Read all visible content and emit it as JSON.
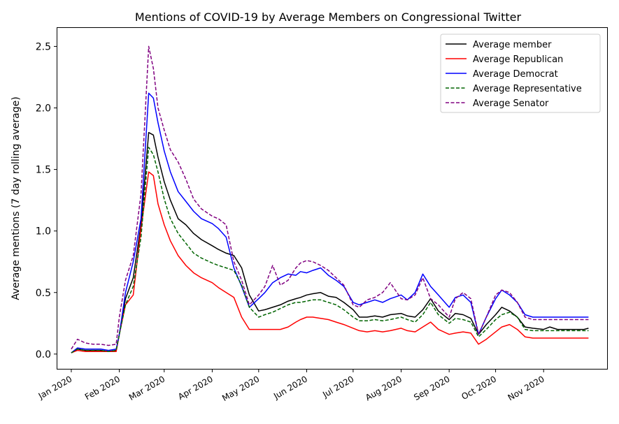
{
  "chart_data": {
    "type": "line",
    "title": "Mentions of COVID-19 by Average Members on Congressional Twitter",
    "xlabel": "",
    "ylabel": "Average mentions (7 day rolling average)",
    "x_axis": {
      "type": "date",
      "range": [
        "2019-12-23",
        "2020-12-12"
      ],
      "ticks": [
        {
          "date": "2020-01-01",
          "label": "Jan 2020"
        },
        {
          "date": "2020-02-01",
          "label": "Feb 2020"
        },
        {
          "date": "2020-03-01",
          "label": "Mar 2020"
        },
        {
          "date": "2020-04-01",
          "label": "Apr 2020"
        },
        {
          "date": "2020-05-01",
          "label": "May 2020"
        },
        {
          "date": "2020-06-01",
          "label": "Jun 2020"
        },
        {
          "date": "2020-07-01",
          "label": "Jul 2020"
        },
        {
          "date": "2020-08-01",
          "label": "Aug 2020"
        },
        {
          "date": "2020-09-01",
          "label": "Sep 2020"
        },
        {
          "date": "2020-10-01",
          "label": "Oct 2020"
        },
        {
          "date": "2020-11-01",
          "label": "Nov 2020"
        }
      ]
    },
    "y_axis": {
      "range": [
        -0.12,
        2.65
      ],
      "ticks": [
        {
          "value": 0.0,
          "label": "0.0"
        },
        {
          "value": 0.5,
          "label": "0.5"
        },
        {
          "value": 1.0,
          "label": "1.0"
        },
        {
          "value": 1.5,
          "label": "1.5"
        },
        {
          "value": 2.0,
          "label": "2.0"
        },
        {
          "value": 2.5,
          "label": "2.5"
        }
      ]
    },
    "grid": false,
    "legend_position": "top-right",
    "x": [
      "2020-01-01",
      "2020-01-05",
      "2020-01-10",
      "2020-01-15",
      "2020-01-20",
      "2020-01-25",
      "2020-01-30",
      "2020-02-01",
      "2020-02-05",
      "2020-02-10",
      "2020-02-15",
      "2020-02-20",
      "2020-02-23",
      "2020-02-26",
      "2020-03-01",
      "2020-03-05",
      "2020-03-10",
      "2020-03-15",
      "2020-03-20",
      "2020-03-25",
      "2020-04-01",
      "2020-04-05",
      "2020-04-10",
      "2020-04-15",
      "2020-04-20",
      "2020-04-25",
      "2020-05-01",
      "2020-05-05",
      "2020-05-10",
      "2020-05-15",
      "2020-05-20",
      "2020-05-25",
      "2020-05-28",
      "2020-06-01",
      "2020-06-05",
      "2020-06-10",
      "2020-06-15",
      "2020-06-20",
      "2020-06-25",
      "2020-07-01",
      "2020-07-05",
      "2020-07-10",
      "2020-07-15",
      "2020-07-20",
      "2020-07-25",
      "2020-08-01",
      "2020-08-05",
      "2020-08-10",
      "2020-08-15",
      "2020-08-20",
      "2020-08-25",
      "2020-09-01",
      "2020-09-05",
      "2020-09-10",
      "2020-09-15",
      "2020-09-20",
      "2020-09-25",
      "2020-10-01",
      "2020-10-05",
      "2020-10-10",
      "2020-10-15",
      "2020-10-20",
      "2020-10-25",
      "2020-11-01",
      "2020-11-05",
      "2020-11-10",
      "2020-11-15",
      "2020-11-20",
      "2020-11-23",
      "2020-11-27",
      "2020-11-30"
    ],
    "series": [
      {
        "name": "Average member",
        "color": "#000000",
        "dash": "solid",
        "values": [
          0.01,
          0.04,
          0.03,
          0.03,
          0.03,
          0.02,
          0.03,
          0.16,
          0.45,
          0.62,
          1.05,
          1.8,
          1.78,
          1.6,
          1.4,
          1.25,
          1.1,
          1.05,
          0.98,
          0.93,
          0.88,
          0.85,
          0.82,
          0.8,
          0.7,
          0.48,
          0.35,
          0.36,
          0.38,
          0.4,
          0.43,
          0.45,
          0.46,
          0.48,
          0.49,
          0.5,
          0.47,
          0.46,
          0.42,
          0.36,
          0.3,
          0.3,
          0.31,
          0.3,
          0.32,
          0.33,
          0.31,
          0.3,
          0.36,
          0.45,
          0.35,
          0.28,
          0.33,
          0.32,
          0.29,
          0.16,
          0.24,
          0.32,
          0.38,
          0.35,
          0.3,
          0.22,
          0.21,
          0.2,
          0.22,
          0.2,
          0.2,
          0.2,
          0.2,
          0.2,
          0.21
        ]
      },
      {
        "name": "Average Republican",
        "color": "#ff0000",
        "dash": "solid",
        "values": [
          0.01,
          0.03,
          0.02,
          0.02,
          0.02,
          0.02,
          0.02,
          0.16,
          0.4,
          0.48,
          1.02,
          1.48,
          1.45,
          1.22,
          1.05,
          0.92,
          0.8,
          0.72,
          0.66,
          0.62,
          0.58,
          0.54,
          0.5,
          0.46,
          0.3,
          0.2,
          0.2,
          0.2,
          0.2,
          0.2,
          0.22,
          0.26,
          0.28,
          0.3,
          0.3,
          0.29,
          0.28,
          0.26,
          0.24,
          0.21,
          0.19,
          0.18,
          0.19,
          0.18,
          0.19,
          0.21,
          0.19,
          0.18,
          0.22,
          0.26,
          0.2,
          0.16,
          0.17,
          0.18,
          0.17,
          0.08,
          0.12,
          0.18,
          0.22,
          0.24,
          0.2,
          0.14,
          0.13,
          0.13,
          0.13,
          0.13,
          0.13,
          0.13,
          0.13,
          0.13,
          0.13
        ]
      },
      {
        "name": "Average Democrat",
        "color": "#0000ff",
        "dash": "solid",
        "values": [
          0.01,
          0.05,
          0.04,
          0.04,
          0.04,
          0.03,
          0.04,
          0.16,
          0.5,
          0.75,
          1.1,
          2.12,
          2.08,
          1.88,
          1.65,
          1.48,
          1.32,
          1.24,
          1.16,
          1.1,
          1.06,
          1.02,
          0.95,
          0.7,
          0.55,
          0.38,
          0.45,
          0.5,
          0.58,
          0.62,
          0.65,
          0.64,
          0.67,
          0.66,
          0.68,
          0.7,
          0.64,
          0.6,
          0.55,
          0.42,
          0.4,
          0.42,
          0.44,
          0.42,
          0.45,
          0.48,
          0.44,
          0.5,
          0.65,
          0.55,
          0.48,
          0.38,
          0.46,
          0.48,
          0.42,
          0.16,
          0.3,
          0.45,
          0.52,
          0.48,
          0.42,
          0.32,
          0.3,
          0.3,
          0.3,
          0.3,
          0.3,
          0.3,
          0.3,
          0.3,
          0.3
        ]
      },
      {
        "name": "Average Representative",
        "color": "#006400",
        "dash": "dashed",
        "values": [
          0.01,
          0.04,
          0.03,
          0.03,
          0.03,
          0.02,
          0.03,
          0.16,
          0.4,
          0.55,
          0.95,
          1.68,
          1.62,
          1.48,
          1.26,
          1.1,
          0.98,
          0.9,
          0.82,
          0.78,
          0.74,
          0.72,
          0.7,
          0.68,
          0.56,
          0.38,
          0.3,
          0.32,
          0.34,
          0.37,
          0.4,
          0.42,
          0.42,
          0.43,
          0.44,
          0.44,
          0.42,
          0.4,
          0.36,
          0.3,
          0.27,
          0.27,
          0.28,
          0.27,
          0.28,
          0.3,
          0.28,
          0.26,
          0.32,
          0.42,
          0.32,
          0.25,
          0.29,
          0.28,
          0.26,
          0.14,
          0.2,
          0.28,
          0.32,
          0.34,
          0.3,
          0.2,
          0.19,
          0.19,
          0.19,
          0.19,
          0.19,
          0.19,
          0.19,
          0.19,
          0.19
        ]
      },
      {
        "name": "Average Senator",
        "color": "#800080",
        "dash": "dashed",
        "values": [
          0.04,
          0.12,
          0.09,
          0.08,
          0.08,
          0.07,
          0.08,
          0.3,
          0.6,
          0.8,
          1.3,
          2.5,
          2.32,
          2.0,
          1.82,
          1.66,
          1.56,
          1.42,
          1.26,
          1.18,
          1.12,
          1.1,
          1.05,
          0.75,
          0.6,
          0.4,
          0.48,
          0.55,
          0.72,
          0.56,
          0.6,
          0.7,
          0.74,
          0.76,
          0.75,
          0.72,
          0.68,
          0.62,
          0.56,
          0.4,
          0.38,
          0.44,
          0.46,
          0.5,
          0.58,
          0.45,
          0.44,
          0.48,
          0.62,
          0.45,
          0.4,
          0.3,
          0.45,
          0.5,
          0.45,
          0.16,
          0.3,
          0.48,
          0.52,
          0.5,
          0.42,
          0.3,
          0.28,
          0.28,
          0.28,
          0.28,
          0.28,
          0.28,
          0.28,
          0.28,
          0.28
        ]
      }
    ]
  }
}
